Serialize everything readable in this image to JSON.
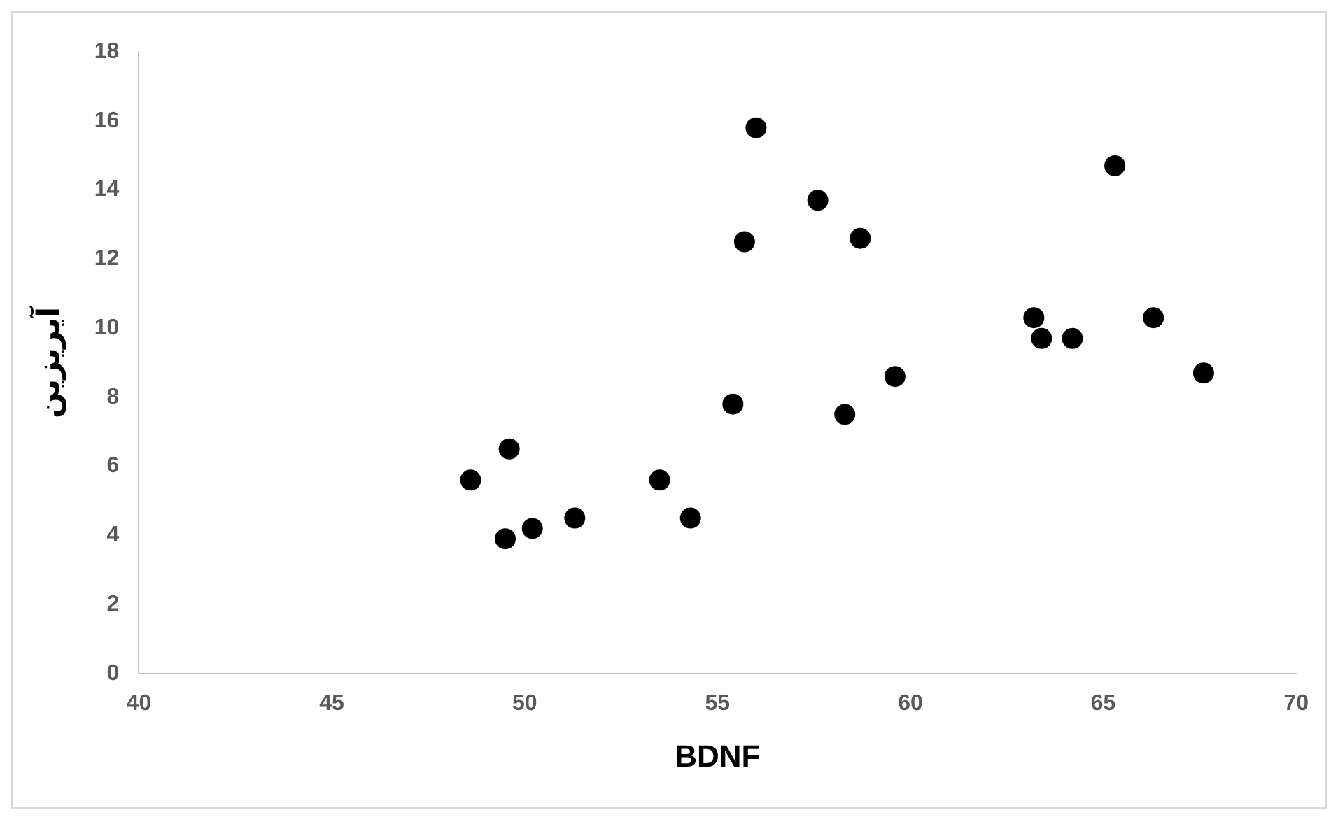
{
  "chart_data": {
    "type": "scatter",
    "xlabel": "BDNF",
    "ylabel": "آیریزین",
    "x": [
      48.6,
      49.6,
      49.5,
      50.2,
      51.3,
      53.5,
      54.3,
      55.4,
      55.7,
      56.0,
      57.6,
      58.3,
      58.7,
      59.6,
      63.2,
      63.4,
      64.2,
      65.3,
      66.3,
      67.6
    ],
    "values": [
      5.6,
      6.5,
      3.9,
      4.2,
      4.5,
      5.6,
      4.5,
      7.8,
      12.5,
      15.8,
      13.7,
      7.5,
      12.6,
      8.6,
      10.3,
      9.7,
      9.7,
      14.7,
      10.3,
      8.7
    ],
    "color": "#000000",
    "marker": "circle",
    "grid": false,
    "legend": false,
    "xlim": [
      40,
      70
    ],
    "xticks": [
      40,
      45,
      50,
      55,
      60,
      65,
      70
    ],
    "ylim": [
      0,
      18
    ],
    "yticks": [
      0,
      2,
      4,
      6,
      8,
      10,
      12,
      14,
      16,
      18
    ]
  }
}
